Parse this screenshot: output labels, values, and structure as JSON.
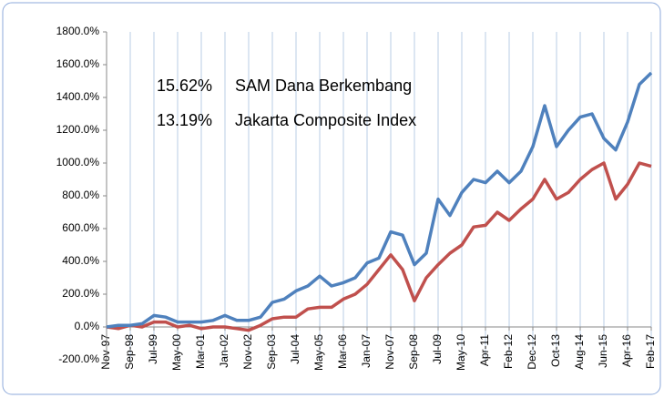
{
  "chart_data": {
    "type": "line",
    "categories": [
      "Nov-97",
      null,
      "Sep-98",
      null,
      "Jul-99",
      null,
      "May-00",
      null,
      "Mar-01",
      null,
      "Jan-02",
      null,
      "Nov-02",
      null,
      "Sep-03",
      null,
      "Jul-04",
      null,
      "May-05",
      null,
      "Mar-06",
      null,
      "Jan-07",
      null,
      "Nov-07",
      null,
      "Sep-08",
      null,
      "Jul-09",
      null,
      "May-10",
      null,
      "Apr-11",
      null,
      "Feb-12",
      null,
      "Dec-12",
      null,
      "Oct-13",
      null,
      "Aug-14",
      null,
      "Jun-15",
      null,
      "Apr-16",
      null,
      "Feb-17"
    ],
    "series": [
      {
        "name": "SAM Dana Berkembang",
        "label": "15.62%",
        "color": "#4f81bd",
        "values": [
          0,
          10,
          10,
          20,
          70,
          60,
          30,
          30,
          30,
          40,
          70,
          40,
          40,
          60,
          150,
          170,
          220,
          250,
          310,
          250,
          270,
          300,
          390,
          420,
          580,
          560,
          380,
          450,
          780,
          680,
          820,
          900,
          880,
          950,
          880,
          950,
          1100,
          1350,
          1100,
          1200,
          1280,
          1300,
          1150,
          1080,
          1250,
          1480,
          1550
        ]
      },
      {
        "name": "Jakarta Composite Index",
        "label": "13.19%",
        "color": "#c0504d",
        "values": [
          0,
          -10,
          10,
          0,
          30,
          30,
          0,
          10,
          -10,
          0,
          0,
          -10,
          -20,
          10,
          50,
          60,
          60,
          110,
          120,
          120,
          170,
          200,
          260,
          350,
          440,
          350,
          160,
          300,
          380,
          450,
          500,
          610,
          620,
          700,
          650,
          720,
          780,
          900,
          780,
          820,
          900,
          960,
          1000,
          780,
          870,
          1000,
          980
        ]
      }
    ],
    "ylim": [
      -200,
      1800
    ],
    "yticks": [
      {
        "value": -200,
        "label": "-200.0%"
      },
      {
        "value": 0,
        "label": "0.0%"
      },
      {
        "value": 200,
        "label": "200.0%"
      },
      {
        "value": 400,
        "label": "400.0%"
      },
      {
        "value": 600,
        "label": "600.0%"
      },
      {
        "value": 800,
        "label": "800.0%"
      },
      {
        "value": 1000,
        "label": "1000.0%"
      },
      {
        "value": 1200,
        "label": "1200.0%"
      },
      {
        "value": 1400,
        "label": "1400.0%"
      },
      {
        "value": 1600,
        "label": "1600.0%"
      },
      {
        "value": 1800,
        "label": "1800.0%"
      }
    ],
    "grid": true
  }
}
